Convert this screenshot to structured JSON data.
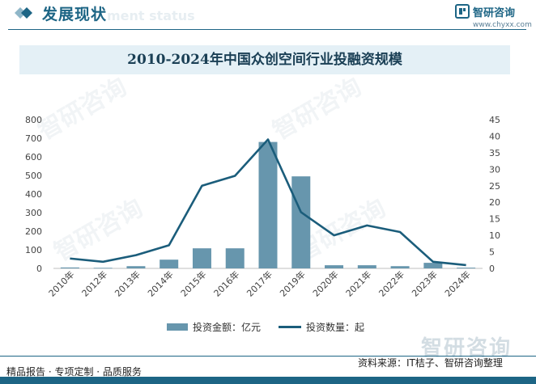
{
  "header": {
    "title": "发展现状",
    "subtitle": "ment status",
    "brand_name": "智研咨询",
    "brand_url": "www.chyxx.com"
  },
  "colors": {
    "primary": "#1d6585",
    "bar": "#6796ad",
    "line": "#1b5d7b",
    "title_bg": "#e4f0f6"
  },
  "chart_data": {
    "type": "bar",
    "title": "2010-2024年中国众创空间行业投融资规模",
    "categories": [
      "2010年",
      "2012年",
      "2013年",
      "2014年",
      "2015年",
      "2016年",
      "2017年",
      "2019年",
      "2020年",
      "2021年",
      "2022年",
      "2023年",
      "2024年"
    ],
    "series": [
      {
        "name": "投资金额：亿元",
        "type": "bar",
        "axis": "left",
        "values": [
          5,
          3,
          12,
          47,
          108,
          108,
          680,
          495,
          17,
          17,
          12,
          30,
          4
        ]
      },
      {
        "name": "投资数量：起",
        "type": "line",
        "axis": "right",
        "values": [
          3,
          2,
          4,
          7,
          25,
          28,
          39,
          17,
          10,
          13,
          11,
          2,
          1
        ]
      }
    ],
    "y_left": {
      "min": 0,
      "max": 800,
      "ticks": [
        "0",
        "100",
        "200",
        "300",
        "400",
        "500",
        "600",
        "700",
        "800"
      ]
    },
    "y_right": {
      "min": 0,
      "max": 45,
      "ticks": [
        "0",
        "5",
        "10",
        "15",
        "20",
        "25",
        "30",
        "35",
        "40",
        "45"
      ]
    },
    "grid": false,
    "legend_position": "bottom"
  },
  "footer": {
    "left": "精品报告 · 专项定制 · 品质服务",
    "source": "资料来源：IT桔子、智研咨询整理",
    "watermark": "智研咨询"
  }
}
